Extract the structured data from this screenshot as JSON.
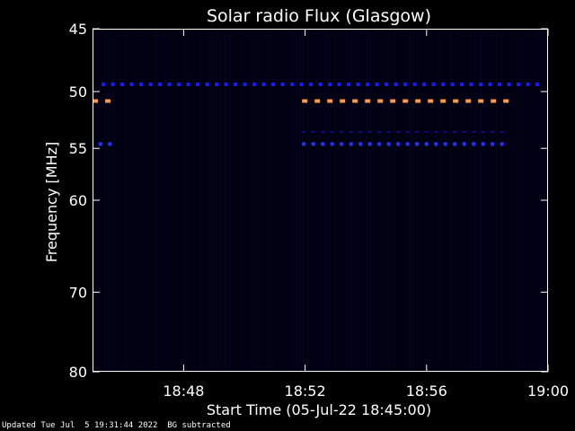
{
  "chart_data": {
    "type": "heatmap",
    "title": "Solar radio Flux (Glasgow)",
    "xlabel": "Start Time (05-Jul-22 18:45:00)",
    "ylabel": "Frequency [MHz]",
    "x_range_minutes": [
      0,
      15
    ],
    "x_ticks": [
      {
        "label": "18:48",
        "minute": 3
      },
      {
        "label": "18:52",
        "minute": 7
      },
      {
        "label": "18:56",
        "minute": 11
      },
      {
        "label": "19:00",
        "minute": 15
      }
    ],
    "y_range_mhz": [
      45,
      80
    ],
    "y_ticks": [
      45,
      50,
      55,
      60,
      70,
      80
    ],
    "y_tick_labels": [
      "45",
      "50",
      "55",
      "60",
      "70",
      "80"
    ],
    "y_scale": "log",
    "y_inverted": true,
    "background_color": "#000010",
    "series": [
      {
        "freq_mhz": 49.4,
        "start_min": 0.3,
        "end_min": 15,
        "intensity": "medium",
        "color": "#1a1aff"
      },
      {
        "freq_mhz": 50.8,
        "start_min": 0.0,
        "end_min": 0.7,
        "intensity": "high",
        "color": "#ff9944"
      },
      {
        "freq_mhz": 50.8,
        "start_min": 6.9,
        "end_min": 13.8,
        "intensity": "high",
        "color": "#ff9944"
      },
      {
        "freq_mhz": 54.6,
        "start_min": 0.2,
        "end_min": 0.7,
        "intensity": "medium",
        "color": "#2233ff"
      },
      {
        "freq_mhz": 54.6,
        "start_min": 6.9,
        "end_min": 13.8,
        "intensity": "medium",
        "color": "#2233ff"
      },
      {
        "freq_mhz": 53.5,
        "start_min": 6.9,
        "end_min": 13.8,
        "intensity": "low",
        "color": "#0a0a99"
      }
    ]
  },
  "footer": {
    "updated": "Updated Tue Jul  5 19:31:44 2022",
    "note": "BG subtracted"
  }
}
